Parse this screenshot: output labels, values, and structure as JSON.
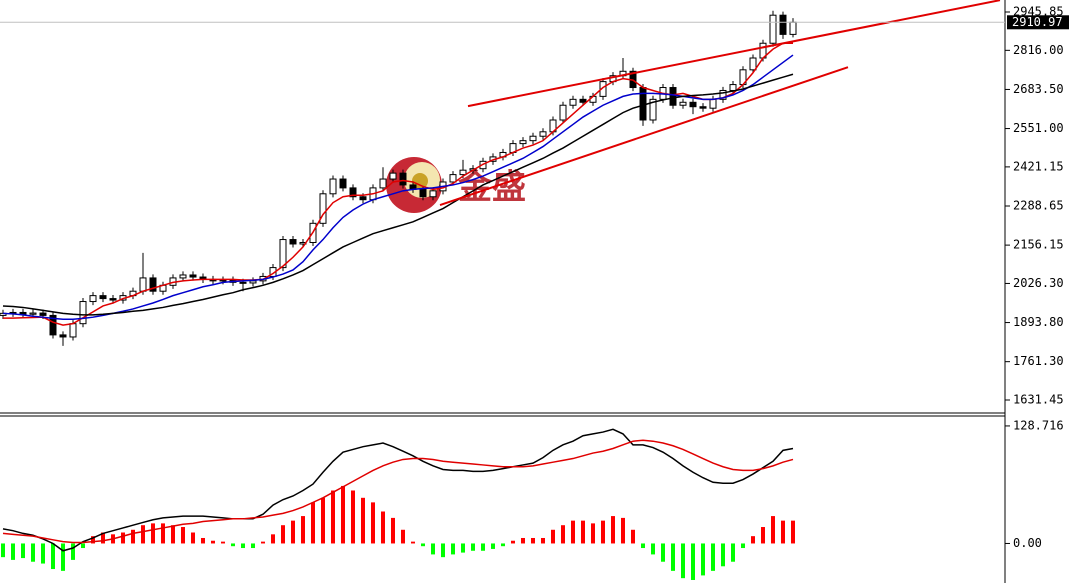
{
  "chart_data": [
    {
      "type": "candlestick",
      "watermark": "金盛",
      "ylim": [
        1590.8,
        2986.5
      ],
      "yticks": [
        2945.85,
        {
          "value": 2816,
          "label": "2816.00"
        },
        {
          "value": 2683.5,
          "label": "2683.50"
        },
        {
          "value": 2551,
          "label": "2551.00"
        },
        2421.15,
        2288.65,
        2156.15,
        {
          "value": 2026.3,
          "label": "2026.30"
        },
        {
          "value": 1893.8,
          "label": "1893.80"
        },
        {
          "value": 1761.3,
          "label": "1761.30"
        },
        1631.45
      ],
      "last_price": 2910.97,
      "up_color": "#ffffff",
      "down_color": "#000000",
      "edge_color": "#000000",
      "open": [
        1918,
        1925,
        1928,
        1922,
        1926,
        1918,
        1852,
        1845,
        1890,
        1965,
        1985,
        1975,
        1970,
        1985,
        2000,
        2045,
        2000,
        2020,
        2045,
        2055,
        2048,
        2040,
        2035,
        2038,
        2030,
        2028,
        2035,
        2050,
        2080,
        2175,
        2160,
        2165,
        2230,
        2330,
        2380,
        2350,
        2320,
        2310,
        2350,
        2380,
        2400,
        2360,
        2345,
        2320,
        2340,
        2370,
        2395,
        2410,
        2415,
        2440,
        2455,
        2470,
        2500,
        2510,
        2525,
        2540,
        2580,
        2630,
        2650,
        2640,
        2660,
        2710,
        2730,
        2745,
        2690,
        2580,
        2650,
        2690,
        2630,
        2640,
        2625,
        2620,
        2650,
        2680,
        2700,
        2750,
        2790,
        2840,
        2935,
        2870
      ],
      "high": [
        1937,
        1940,
        1940,
        1938,
        1938,
        1930,
        1864,
        1902,
        1977,
        1997,
        1997,
        1987,
        1997,
        2012,
        2130,
        2057,
        2032,
        2057,
        2067,
        2067,
        2060,
        2052,
        2050,
        2050,
        2042,
        2047,
        2062,
        2092,
        2187,
        2187,
        2177,
        2242,
        2342,
        2392,
        2392,
        2362,
        2332,
        2362,
        2420,
        2412,
        2412,
        2372,
        2357,
        2352,
        2382,
        2407,
        2445,
        2427,
        2452,
        2467,
        2482,
        2512,
        2522,
        2537,
        2552,
        2592,
        2642,
        2662,
        2662,
        2672,
        2722,
        2742,
        2790,
        2757,
        2702,
        2662,
        2702,
        2702,
        2652,
        2652,
        2637,
        2662,
        2692,
        2712,
        2762,
        2802,
        2852,
        2950,
        2947,
        2925
      ],
      "low": [
        1906,
        1913,
        1910,
        1910,
        1906,
        1840,
        1815,
        1833,
        1878,
        1953,
        1963,
        1958,
        1958,
        1973,
        1988,
        1988,
        1988,
        2008,
        2033,
        2036,
        2028,
        2023,
        2023,
        2018,
        2000,
        2016,
        2023,
        2038,
        2068,
        2148,
        2148,
        2153,
        2218,
        2318,
        2338,
        2308,
        2298,
        2298,
        2338,
        2368,
        2348,
        2333,
        2308,
        2308,
        2328,
        2358,
        2383,
        2398,
        2403,
        2428,
        2443,
        2458,
        2488,
        2498,
        2513,
        2528,
        2568,
        2618,
        2628,
        2628,
        2648,
        2698,
        2718,
        2678,
        2560,
        2568,
        2638,
        2618,
        2618,
        2600,
        2608,
        2608,
        2638,
        2668,
        2688,
        2738,
        2778,
        2828,
        2855,
        2860
      ],
      "close": [
        1925,
        1928,
        1922,
        1926,
        1918,
        1852,
        1845,
        1890,
        1965,
        1985,
        1975,
        1970,
        1985,
        2000,
        2045,
        2000,
        2020,
        2045,
        2055,
        2048,
        2040,
        2035,
        2038,
        2030,
        2028,
        2035,
        2050,
        2080,
        2175,
        2160,
        2165,
        2230,
        2330,
        2380,
        2350,
        2320,
        2310,
        2350,
        2380,
        2400,
        2360,
        2345,
        2320,
        2340,
        2370,
        2395,
        2410,
        2415,
        2440,
        2455,
        2470,
        2500,
        2510,
        2525,
        2540,
        2580,
        2630,
        2650,
        2640,
        2660,
        2710,
        2730,
        2745,
        2690,
        2580,
        2650,
        2690,
        2630,
        2640,
        2625,
        2620,
        2650,
        2680,
        2700,
        2750,
        2790,
        2840,
        2935,
        2870,
        2911
      ],
      "series": [
        {
          "color": "#e00000",
          "values": [
            1909,
            1909,
            1910,
            1911,
            1912,
            1895,
            1885,
            1890,
            1910,
            1930,
            1950,
            1960,
            1975,
            1985,
            2000,
            2010,
            2020,
            2030,
            2035,
            2038,
            2040,
            2040,
            2040,
            2040,
            2038,
            2038,
            2040,
            2060,
            2085,
            2115,
            2150,
            2200,
            2260,
            2300,
            2320,
            2325,
            2325,
            2330,
            2340,
            2370,
            2375,
            2370,
            2355,
            2345,
            2350,
            2365,
            2390,
            2410,
            2430,
            2445,
            2455,
            2470,
            2485,
            2495,
            2510,
            2540,
            2570,
            2600,
            2630,
            2660,
            2690,
            2710,
            2720,
            2715,
            2690,
            2680,
            2670,
            2665,
            2670,
            2660,
            2650,
            2650,
            2655,
            2670,
            2700,
            2740,
            2790,
            2820,
            2840,
            2840
          ]
        },
        {
          "color": "#0000cc",
          "values": [
            1925,
            1923,
            1920,
            1915,
            1912,
            1908,
            1905,
            1905,
            1908,
            1912,
            1918,
            1925,
            1932,
            1940,
            1950,
            1960,
            1972,
            1985,
            1995,
            2005,
            2015,
            2022,
            2030,
            2033,
            2035,
            2037,
            2040,
            2048,
            2058,
            2072,
            2100,
            2140,
            2175,
            2215,
            2250,
            2275,
            2295,
            2310,
            2320,
            2330,
            2340,
            2345,
            2348,
            2350,
            2355,
            2360,
            2368,
            2378,
            2390,
            2405,
            2420,
            2435,
            2450,
            2470,
            2490,
            2515,
            2540,
            2565,
            2590,
            2610,
            2630,
            2645,
            2660,
            2668,
            2670,
            2670,
            2668,
            2665,
            2660,
            2655,
            2650,
            2650,
            2655,
            2665,
            2680,
            2700,
            2725,
            2750,
            2775,
            2800
          ]
        },
        {
          "color": "#000000",
          "values": [
            1950,
            1948,
            1945,
            1940,
            1935,
            1930,
            1925,
            1922,
            1920,
            1920,
            1922,
            1925,
            1928,
            1932,
            1935,
            1940,
            1945,
            1952,
            1958,
            1965,
            1972,
            1980,
            1988,
            1995,
            2005,
            2012,
            2020,
            2030,
            2042,
            2055,
            2070,
            2090,
            2110,
            2130,
            2150,
            2165,
            2180,
            2195,
            2205,
            2215,
            2225,
            2235,
            2250,
            2265,
            2280,
            2300,
            2320,
            2340,
            2360,
            2375,
            2390,
            2405,
            2420,
            2435,
            2450,
            2468,
            2485,
            2505,
            2525,
            2545,
            2565,
            2585,
            2605,
            2620,
            2630,
            2640,
            2648,
            2655,
            2660,
            2663,
            2665,
            2668,
            2672,
            2678,
            2685,
            2695,
            2705,
            2715,
            2725,
            2735
          ]
        }
      ],
      "trendlines": [
        {
          "color": "#e00000",
          "x": [
            46.5,
            99.7
          ],
          "y": [
            2627,
            2986
          ]
        },
        {
          "color": "#e00000",
          "x": [
            43.7,
            84.5
          ],
          "y": [
            2292,
            2759
          ]
        }
      ]
    },
    {
      "type": "macd",
      "ylim": [
        -43.3,
        138.5
      ],
      "yticks": [
        128.716,
        {
          "value": 0,
          "label": "0.00"
        }
      ],
      "pos_color": "#ff0000",
      "neg_color": "#00ff00",
      "histogram": [
        -15,
        -18,
        -16,
        -20,
        -22,
        -28,
        -30,
        -18,
        -5,
        8,
        12,
        10,
        12,
        15,
        20,
        22,
        22,
        20,
        18,
        12,
        6,
        3,
        2,
        -3,
        -5,
        -5,
        2,
        10,
        20,
        25,
        30,
        45,
        50,
        58,
        63,
        58,
        50,
        45,
        35,
        28,
        15,
        2,
        -3,
        -12,
        -15,
        -12,
        -10,
        -8,
        -8,
        -6,
        -3,
        3,
        6,
        6,
        6,
        15,
        20,
        25,
        25,
        22,
        25,
        30,
        28,
        15,
        -5,
        -12,
        -20,
        -30,
        -38,
        -40,
        -35,
        -30,
        -25,
        -20,
        -5,
        8,
        18,
        30,
        25,
        25
      ],
      "series": [
        {
          "color": "#000000",
          "values": [
            16,
            14,
            11,
            9,
            5,
            0,
            -8,
            -5,
            2,
            6,
            11,
            14,
            17,
            20,
            23,
            26,
            28,
            29,
            30,
            30,
            30,
            29,
            28,
            27,
            27,
            27,
            32,
            42,
            48,
            52,
            58,
            65,
            78,
            90,
            100,
            103,
            106,
            108,
            110,
            106,
            101,
            96,
            90,
            85,
            81,
            80,
            80,
            79,
            79,
            80,
            82,
            84,
            86,
            88,
            94,
            102,
            108,
            112,
            118,
            120,
            122,
            125,
            120,
            108,
            108,
            105,
            100,
            93,
            85,
            78,
            72,
            67,
            66,
            66,
            70,
            76,
            83,
            90,
            102,
            104
          ]
        },
        {
          "color": "#e00000",
          "values": [
            11,
            10,
            9,
            8,
            6,
            4,
            2,
            1,
            1,
            2,
            3,
            5,
            8,
            11,
            13,
            15,
            17,
            19,
            21,
            22,
            24,
            25,
            26,
            27,
            27,
            28,
            29,
            31,
            33,
            36,
            40,
            45,
            50,
            56,
            62,
            68,
            74,
            80,
            85,
            89,
            92,
            93,
            93,
            92,
            90,
            89,
            88,
            87,
            86,
            85,
            84,
            84,
            84,
            85,
            87,
            89,
            91,
            93,
            96,
            99,
            101,
            104,
            108,
            112,
            113,
            112,
            110,
            107,
            103,
            98,
            93,
            88,
            84,
            81,
            80,
            80,
            82,
            85,
            89,
            92
          ]
        }
      ]
    }
  ]
}
